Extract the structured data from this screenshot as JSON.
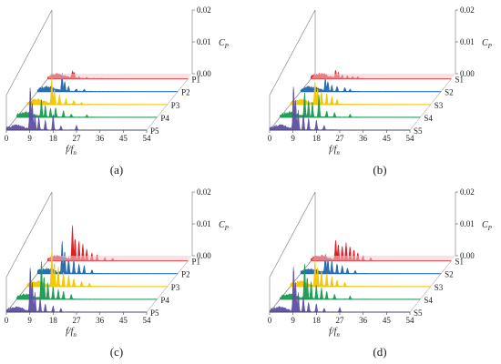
{
  "chart_data": [
    {
      "type": "area",
      "panel_label": "(a)",
      "xlabel": "f/f",
      "xlabel_sub": "n",
      "zlabel": "C",
      "zlabel_sub": "P",
      "x_ticks": [
        "0",
        "9",
        "18",
        "27",
        "36",
        "45",
        "54"
      ],
      "xlim": [
        0,
        54
      ],
      "z_ticks": [
        "0.00",
        "0.01",
        "0.02"
      ],
      "zlim": [
        0,
        0.02
      ],
      "series": [
        {
          "name": "P1",
          "color": "#d7191c",
          "peaks": [
            [
              9.5,
              0.0022
            ],
            [
              10.2,
              0.0016
            ],
            [
              12,
              0.0006
            ],
            [
              15,
              0.0003
            ]
          ]
        },
        {
          "name": "P2",
          "color": "#2166ac",
          "peaks": [
            [
              9.5,
              0.0055
            ],
            [
              10.5,
              0.003
            ],
            [
              12,
              0.0015
            ],
            [
              15,
              0.0008
            ],
            [
              18,
              0.0006
            ]
          ]
        },
        {
          "name": "P3",
          "color": "#f2c500",
          "peaks": [
            [
              9.5,
              0.008
            ],
            [
              10.5,
              0.0045
            ],
            [
              12.5,
              0.003
            ],
            [
              15,
              0.0018
            ],
            [
              18,
              0.0012
            ],
            [
              21,
              0.0006
            ]
          ]
        },
        {
          "name": "P4",
          "color": "#1a9850",
          "peaks": [
            [
              9.5,
              0.0055
            ],
            [
              11,
              0.0035
            ],
            [
              13,
              0.0028
            ],
            [
              15,
              0.003
            ],
            [
              18,
              0.002
            ],
            [
              21,
              0.001
            ],
            [
              27,
              0.0008
            ]
          ]
        },
        {
          "name": "P5",
          "color": "#5e4fa2",
          "peaks": [
            [
              9.2,
              0.0135
            ],
            [
              10,
              0.008
            ],
            [
              11,
              0.0045
            ],
            [
              12.5,
              0.004
            ],
            [
              15,
              0.003
            ],
            [
              18,
              0.005
            ],
            [
              21,
              0.0012
            ],
            [
              27,
              0.0015
            ]
          ]
        }
      ]
    },
    {
      "type": "area",
      "panel_label": "(b)",
      "xlabel": "f/f",
      "xlabel_sub": "n",
      "zlabel": "C",
      "zlabel_sub": "P",
      "x_ticks": [
        "0",
        "9",
        "18",
        "27",
        "36",
        "45",
        "54"
      ],
      "xlim": [
        0,
        54
      ],
      "z_ticks": [
        "0.00",
        "0.01",
        "0.02"
      ],
      "zlim": [
        0,
        0.02
      ],
      "series": [
        {
          "name": "S1",
          "color": "#d7191c",
          "peaks": [
            [
              9.5,
              0.0025
            ],
            [
              10.5,
              0.0018
            ],
            [
              12,
              0.0012
            ],
            [
              14,
              0.001
            ],
            [
              16,
              0.0008
            ],
            [
              18,
              0.0006
            ]
          ]
        },
        {
          "name": "S2",
          "color": "#2166ac",
          "peaks": [
            [
              9.5,
              0.004
            ],
            [
              10.5,
              0.003
            ],
            [
              12,
              0.002
            ],
            [
              14,
              0.0016
            ],
            [
              17,
              0.0012
            ],
            [
              19,
              0.0008
            ]
          ]
        },
        {
          "name": "S3",
          "color": "#f2c500",
          "peaks": [
            [
              9.5,
              0.007
            ],
            [
              10.5,
              0.005
            ],
            [
              12,
              0.004
            ],
            [
              14,
              0.0035
            ],
            [
              16,
              0.0025
            ],
            [
              18,
              0.0015
            ]
          ]
        },
        {
          "name": "S4",
          "color": "#1a9850",
          "peaks": [
            [
              9.5,
              0.0075
            ],
            [
              11,
              0.005
            ],
            [
              12.5,
              0.0045
            ],
            [
              15,
              0.007
            ],
            [
              18,
              0.002
            ],
            [
              21,
              0.0015
            ],
            [
              27,
              0.001
            ]
          ]
        },
        {
          "name": "S5",
          "color": "#5e4fa2",
          "peaks": [
            [
              9.2,
              0.0135
            ],
            [
              10,
              0.009
            ],
            [
              11,
              0.006
            ],
            [
              13,
              0.005
            ],
            [
              15,
              0.0035
            ],
            [
              18,
              0.003
            ],
            [
              21,
              0.0015
            ]
          ]
        }
      ]
    },
    {
      "type": "area",
      "panel_label": "(c)",
      "xlabel": "f/f",
      "xlabel_sub": "n",
      "zlabel": "C",
      "zlabel_sub": "P",
      "x_ticks": [
        "0",
        "9",
        "18",
        "27",
        "36",
        "45",
        "54"
      ],
      "xlim": [
        0,
        54
      ],
      "z_ticks": [
        "0.00",
        "0.01",
        "0.02"
      ],
      "zlim": [
        0,
        0.02
      ],
      "series": [
        {
          "name": "P1",
          "color": "#d7191c",
          "peaks": [
            [
              9.5,
              0.011
            ],
            [
              10.5,
              0.007
            ],
            [
              12,
              0.006
            ],
            [
              13.5,
              0.005
            ],
            [
              15,
              0.0035
            ],
            [
              17,
              0.0025
            ],
            [
              19,
              0.0018
            ],
            [
              22,
              0.001
            ],
            [
              25,
              0.0008
            ]
          ]
        },
        {
          "name": "P2",
          "color": "#2166ac",
          "peaks": [
            [
              9.5,
              0.01
            ],
            [
              10.5,
              0.007
            ],
            [
              12,
              0.005
            ],
            [
              14,
              0.0045
            ],
            [
              16,
              0.003
            ],
            [
              18,
              0.0025
            ],
            [
              21,
              0.0012
            ]
          ]
        },
        {
          "name": "P3",
          "color": "#f2c500",
          "peaks": [
            [
              9.5,
              0.011
            ],
            [
              10.5,
              0.0075
            ],
            [
              12,
              0.006
            ],
            [
              14,
              0.0045
            ],
            [
              16,
              0.0035
            ],
            [
              18,
              0.0025
            ],
            [
              21,
              0.0015
            ],
            [
              24,
              0.001
            ]
          ]
        },
        {
          "name": "P4",
          "color": "#1a9850",
          "peaks": [
            [
              9.5,
              0.012
            ],
            [
              10.5,
              0.007
            ],
            [
              12,
              0.005
            ],
            [
              14,
              0.004
            ],
            [
              16,
              0.003
            ],
            [
              18,
              0.0025
            ],
            [
              21,
              0.0015
            ]
          ]
        },
        {
          "name": "P5",
          "color": "#5e4fa2",
          "peaks": [
            [
              9.2,
              0.014
            ],
            [
              10,
              0.009
            ],
            [
              11,
              0.006
            ],
            [
              13,
              0.004
            ],
            [
              15,
              0.0025
            ],
            [
              18,
              0.002
            ],
            [
              21,
              0.0012
            ]
          ]
        }
      ]
    },
    {
      "type": "area",
      "panel_label": "(d)",
      "xlabel": "f/f",
      "xlabel_sub": "n",
      "zlabel": "C",
      "zlabel_sub": "P",
      "x_ticks": [
        "0",
        "9",
        "18",
        "27",
        "36",
        "45",
        "54"
      ],
      "xlim": [
        0,
        54
      ],
      "z_ticks": [
        "0.00",
        "0.01",
        "0.02"
      ],
      "zlim": [
        0,
        0.02
      ],
      "series": [
        {
          "name": "S1",
          "color": "#d7191c",
          "peaks": [
            [
              9.5,
              0.0065
            ],
            [
              10.5,
              0.005
            ],
            [
              12,
              0.0045
            ],
            [
              13.5,
              0.0055
            ],
            [
              15,
              0.0045
            ],
            [
              16.5,
              0.0035
            ],
            [
              18,
              0.0025
            ],
            [
              20,
              0.0015
            ],
            [
              23,
              0.001
            ]
          ]
        },
        {
          "name": "S2",
          "color": "#2166ac",
          "peaks": [
            [
              9.5,
              0.006
            ],
            [
              10.5,
              0.0045
            ],
            [
              12,
              0.004
            ],
            [
              14,
              0.003
            ],
            [
              16,
              0.0025
            ],
            [
              18,
              0.0018
            ],
            [
              21,
              0.001
            ]
          ]
        },
        {
          "name": "S3",
          "color": "#f2c500",
          "peaks": [
            [
              9.5,
              0.008
            ],
            [
              10.5,
              0.006
            ],
            [
              12,
              0.005
            ],
            [
              14,
              0.004
            ],
            [
              16,
              0.003
            ],
            [
              18,
              0.002
            ],
            [
              21,
              0.0012
            ]
          ]
        },
        {
          "name": "S4",
          "color": "#1a9850",
          "peaks": [
            [
              9.5,
              0.011
            ],
            [
              10.5,
              0.007
            ],
            [
              12,
              0.0055
            ],
            [
              14,
              0.0045
            ],
            [
              16,
              0.0035
            ],
            [
              18,
              0.0025
            ],
            [
              21,
              0.0015
            ],
            [
              27,
              0.001
            ]
          ]
        },
        {
          "name": "S5",
          "color": "#5e4fa2",
          "peaks": [
            [
              9.2,
              0.014
            ],
            [
              10,
              0.009
            ],
            [
              11,
              0.006
            ],
            [
              13,
              0.0045
            ],
            [
              15,
              0.003
            ],
            [
              18,
              0.0025
            ],
            [
              21,
              0.0012
            ],
            [
              27,
              0.0015
            ]
          ]
        }
      ]
    }
  ]
}
